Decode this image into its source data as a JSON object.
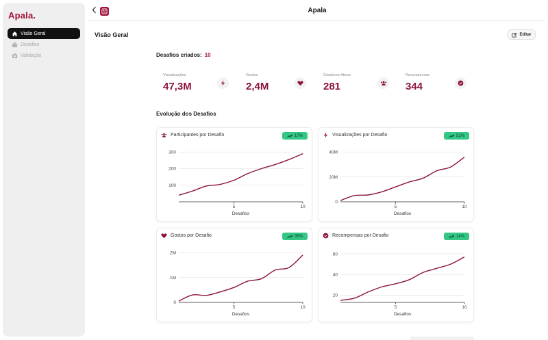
{
  "app": {
    "brand": "Apala.",
    "title": "Apala"
  },
  "sidebar": {
    "items": [
      {
        "label": "Visão Geral",
        "icon": "home-icon",
        "active": true
      },
      {
        "label": "Desafios",
        "icon": "briefcase-icon",
        "active": false
      },
      {
        "label": "Validação",
        "icon": "camera-icon",
        "active": false
      }
    ]
  },
  "page": {
    "title": "Visão Geral",
    "edit_label": "Editar"
  },
  "summary": {
    "created_label": "Desafios criados:",
    "created_value": "10"
  },
  "stats": [
    {
      "label": "Visualizações",
      "value": "47,3M",
      "icon": "bolt-icon"
    },
    {
      "label": "Gostos",
      "value": "2,4M",
      "icon": "heart-icon"
    },
    {
      "label": "Criadores Ativos",
      "value": "281",
      "icon": "users-icon"
    },
    {
      "label": "Recompensas",
      "value": "344",
      "icon": "badge-check-icon"
    }
  ],
  "evolution": {
    "title": "Evolução dos Desafios"
  },
  "colors": {
    "accent": "#8c1238",
    "badge": "#33c685",
    "grid": "#e6e6e6"
  },
  "chart_data": [
    {
      "type": "line",
      "title": "Participantes por Desafio",
      "icon": "users-icon",
      "badge": "17%",
      "xlabel": "Desafios",
      "xlim": [
        1,
        10
      ],
      "ylim": [
        0,
        330
      ],
      "x_ticks": [
        5,
        10
      ],
      "y_ticks": [
        100,
        200,
        300
      ],
      "y_tick_labels": [
        "100",
        "200",
        "300"
      ],
      "x": [
        1,
        2,
        3,
        4,
        5,
        6,
        7,
        8,
        9,
        10
      ],
      "values": [
        40,
        65,
        95,
        105,
        130,
        170,
        200,
        225,
        255,
        290
      ]
    },
    {
      "type": "line",
      "title": "Visualizações por Desafio",
      "icon": "bolt-icon",
      "badge": "51%",
      "xlabel": "Desafios",
      "xlim": [
        1,
        10
      ],
      "ylim": [
        0,
        44
      ],
      "x_ticks": [
        5,
        10
      ],
      "y_ticks": [
        0,
        20,
        40
      ],
      "y_tick_labels": [
        "0",
        "20M",
        "40M"
      ],
      "x": [
        1,
        2,
        3,
        4,
        5,
        6,
        7,
        8,
        9,
        10
      ],
      "values": [
        1,
        5,
        5.5,
        8,
        12,
        16,
        19,
        25,
        28,
        36
      ]
    },
    {
      "type": "line",
      "title": "Gostos por Desafio",
      "icon": "heart-icon",
      "badge": "35%",
      "xlabel": "Desafios",
      "xlim": [
        1,
        10
      ],
      "ylim": [
        0,
        2.2
      ],
      "x_ticks": [
        5,
        10
      ],
      "y_ticks": [
        0,
        1,
        2
      ],
      "y_tick_labels": [
        "0",
        "1M",
        "2M"
      ],
      "x": [
        1,
        2,
        3,
        4,
        5,
        6,
        7,
        8,
        9,
        10
      ],
      "values": [
        0.05,
        0.3,
        0.28,
        0.42,
        0.6,
        0.85,
        0.95,
        1.3,
        1.4,
        1.9
      ]
    },
    {
      "type": "line",
      "title": "Recompensas por Desafio",
      "icon": "badge-check-icon",
      "badge": "14%",
      "xlabel": "Desafios",
      "xlim": [
        1,
        10
      ],
      "ylim": [
        13,
        66
      ],
      "x_ticks": [
        5,
        10
      ],
      "y_ticks": [
        20,
        40,
        60
      ],
      "y_tick_labels": [
        "20",
        "40",
        "60"
      ],
      "x": [
        1,
        2,
        3,
        4,
        5,
        6,
        7,
        8,
        9,
        10
      ],
      "values": [
        15,
        17,
        23,
        28,
        31,
        35,
        42,
        46,
        50,
        57
      ]
    }
  ]
}
